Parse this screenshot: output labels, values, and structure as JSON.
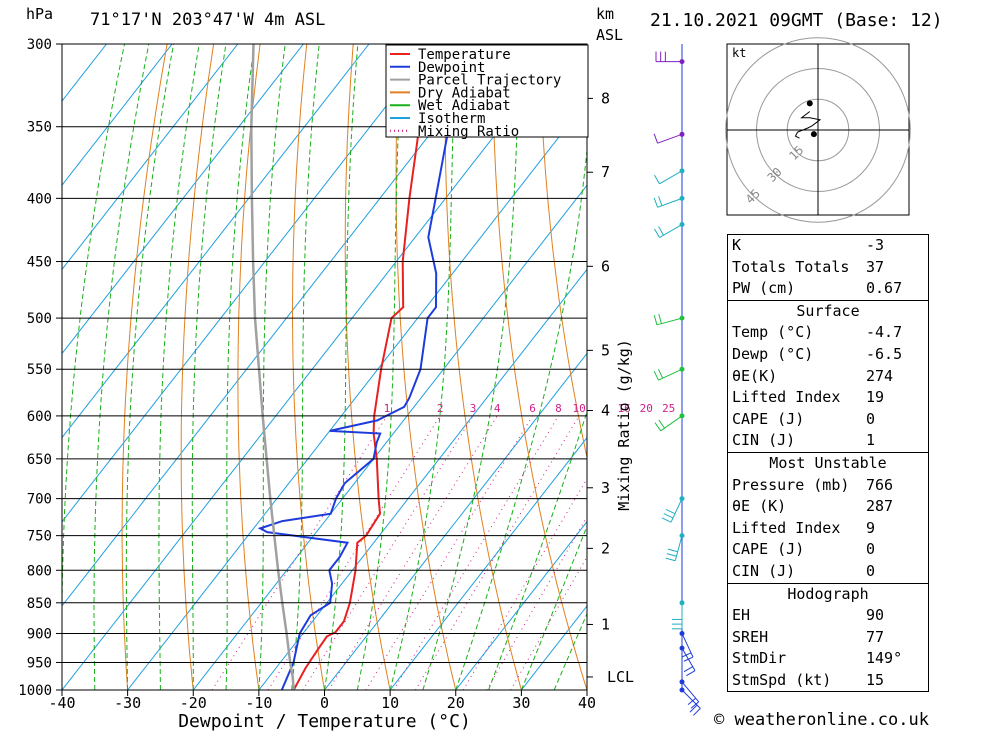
{
  "header": {
    "hpa_label": "hPa",
    "location": "71°17'N  203°47'W  4m  ASL",
    "km_label": "km",
    "asl_label": "ASL",
    "datetime": "21.10.2021  09GMT  (Base: 12)"
  },
  "footer": {
    "credit": "© weatheronline.co.uk"
  },
  "colors": {
    "temperature": "#e82020",
    "dewpoint": "#1e3cdc",
    "parcel": "#a0a0a0",
    "dry_adiabat": "#e08020",
    "wet_adiabat": "#18b018",
    "isotherm": "#20a0e0",
    "mixing_ratio": "#d0208a"
  },
  "chart_data": {
    "type": "line",
    "title": "",
    "xlabel": "Dewpoint / Temperature (°C)",
    "ylabel": "hPa",
    "right_axis_label": "Mixing Ratio (g/kg)",
    "xlim": [
      -40,
      40
    ],
    "ylim": [
      1000,
      300
    ],
    "x_ticks": [
      "-40",
      "-30",
      "-20",
      "-10",
      "0",
      "10",
      "20",
      "30",
      "40"
    ],
    "pressure_ticks": [
      "300",
      "350",
      "400",
      "450",
      "500",
      "550",
      "600",
      "650",
      "700",
      "750",
      "800",
      "850",
      "900",
      "950",
      "1000"
    ],
    "km_ticks": [
      {
        "label": "8",
        "p": 332
      },
      {
        "label": "7",
        "p": 381
      },
      {
        "label": "6",
        "p": 454
      },
      {
        "label": "5",
        "p": 531
      },
      {
        "label": "4",
        "p": 594
      },
      {
        "label": "3",
        "p": 686
      },
      {
        "label": "2",
        "p": 768
      },
      {
        "label": "1",
        "p": 885
      }
    ],
    "lcl": {
      "label": "LCL",
      "p": 976
    },
    "mixing_ratio_labels": [
      "1",
      "2",
      "3",
      "4",
      "6",
      "8",
      "10",
      "16",
      "20",
      "25"
    ],
    "legend": [
      "Temperature",
      "Dewpoint",
      "Parcel Trajectory",
      "Dry Adiabat",
      "Wet Adiabat",
      "Isotherm",
      "Mixing Ratio"
    ],
    "legend_position": "top-right",
    "series": [
      {
        "name": "Temperature",
        "points": [
          [
            1000,
            -4.7
          ],
          [
            960,
            -5.5
          ],
          [
            930,
            -5.8
          ],
          [
            905,
            -6.0
          ],
          [
            898,
            -5.2
          ],
          [
            880,
            -5.2
          ],
          [
            850,
            -6.5
          ],
          [
            800,
            -9.5
          ],
          [
            760,
            -12.5
          ],
          [
            750,
            -12
          ],
          [
            720,
            -12.5
          ],
          [
            700,
            -14.5
          ],
          [
            650,
            -19.5
          ],
          [
            620,
            -23
          ],
          [
            600,
            -25
          ],
          [
            550,
            -29.5
          ],
          [
            500,
            -34
          ],
          [
            490,
            -33.5
          ],
          [
            450,
            -39
          ],
          [
            400,
            -45.5
          ],
          [
            350,
            -52.5
          ],
          [
            300,
            -59.5
          ]
        ]
      },
      {
        "name": "Dewpoint",
        "points": [
          [
            1000,
            -6.5
          ],
          [
            950,
            -8
          ],
          [
            900,
            -10.5
          ],
          [
            870,
            -11
          ],
          [
            850,
            -9.5
          ],
          [
            820,
            -11.5
          ],
          [
            800,
            -13.5
          ],
          [
            780,
            -13.5
          ],
          [
            760,
            -14
          ],
          [
            745,
            -27.5
          ],
          [
            740,
            -29
          ],
          [
            730,
            -26.5
          ],
          [
            720,
            -20
          ],
          [
            700,
            -21
          ],
          [
            680,
            -21.5
          ],
          [
            650,
            -20
          ],
          [
            630,
            -21.5
          ],
          [
            620,
            -22
          ],
          [
            617,
            -30
          ],
          [
            613,
            -28
          ],
          [
            605,
            -24
          ],
          [
            590,
            -21.5
          ],
          [
            580,
            -21.8
          ],
          [
            550,
            -23.5
          ],
          [
            500,
            -28.5
          ],
          [
            490,
            -28.5
          ],
          [
            460,
            -32.5
          ],
          [
            430,
            -38
          ],
          [
            400,
            -41.5
          ],
          [
            350,
            -48
          ],
          [
            330,
            -53
          ],
          [
            315,
            -61
          ],
          [
            300,
            -61.5
          ]
        ]
      },
      {
        "name": "Parcel Trajectory",
        "points": [
          [
            1000,
            -4.7
          ],
          [
            976,
            -6.4
          ],
          [
            950,
            -8.5
          ],
          [
            900,
            -12.5
          ],
          [
            850,
            -16.8
          ],
          [
            800,
            -21.3
          ],
          [
            750,
            -26
          ],
          [
            700,
            -31
          ],
          [
            650,
            -36.3
          ],
          [
            600,
            -42
          ],
          [
            550,
            -48.1
          ],
          [
            500,
            -54.8
          ],
          [
            450,
            -61.8
          ],
          [
            400,
            -69.5
          ],
          [
            350,
            -78.1
          ],
          [
            300,
            -87.6
          ]
        ]
      }
    ],
    "hodograph": {
      "unit": "kt",
      "ring_labels": [
        "15",
        "30",
        "45"
      ],
      "trace_kt": [
        [
          -9,
          -4
        ],
        [
          -11,
          -3
        ],
        [
          -10,
          -1
        ],
        [
          -5,
          1
        ],
        [
          -3,
          2
        ],
        [
          1,
          5
        ],
        [
          -4,
          6
        ],
        [
          -8,
          6
        ],
        [
          -4,
          9
        ]
      ]
    },
    "wind_profile": [
      {
        "p": 1000,
        "dir": 135,
        "spd": 15
      },
      {
        "p": 985,
        "dir": 140,
        "spd": 15
      },
      {
        "p": 925,
        "dir": 150,
        "spd": 20
      },
      {
        "p": 900,
        "dir": 155,
        "spd": 20
      },
      {
        "p": 850,
        "dir": 180,
        "spd": 25
      },
      {
        "p": 750,
        "dir": 195,
        "spd": 25
      },
      {
        "p": 700,
        "dir": 205,
        "spd": 25
      },
      {
        "p": 600,
        "dir": 235,
        "spd": 20
      },
      {
        "p": 550,
        "dir": 245,
        "spd": 20
      },
      {
        "p": 500,
        "dir": 255,
        "spd": 20
      },
      {
        "p": 420,
        "dir": 240,
        "spd": 15
      },
      {
        "p": 400,
        "dir": 250,
        "spd": 15
      },
      {
        "p": 380,
        "dir": 240,
        "spd": 10
      },
      {
        "p": 355,
        "dir": 250,
        "spd": 10
      },
      {
        "p": 310,
        "dir": 270,
        "spd": 30
      }
    ]
  },
  "indices": {
    "basic": [
      {
        "label": "K",
        "value": "-3"
      },
      {
        "label": "Totals Totals",
        "value": "37"
      },
      {
        "label": "PW (cm)",
        "value": "0.67"
      }
    ],
    "surface": {
      "title": "Surface",
      "rows": [
        {
          "label": "Temp (°C)",
          "value": "-4.7"
        },
        {
          "label": "Dewp (°C)",
          "value": "-6.5"
        },
        {
          "label": "θE(K)",
          "value": "274"
        },
        {
          "label": "Lifted Index",
          "value": "19"
        },
        {
          "label": "CAPE (J)",
          "value": "0"
        },
        {
          "label": "CIN (J)",
          "value": "1"
        }
      ]
    },
    "most_unstable": {
      "title": "Most Unstable",
      "rows": [
        {
          "label": "Pressure (mb)",
          "value": "766"
        },
        {
          "label": "θE (K)",
          "value": "287"
        },
        {
          "label": "Lifted Index",
          "value": "9"
        },
        {
          "label": "CAPE (J)",
          "value": "0"
        },
        {
          "label": "CIN (J)",
          "value": "0"
        }
      ]
    },
    "hodograph": {
      "title": "Hodograph",
      "rows": [
        {
          "label": "EH",
          "value": "90"
        },
        {
          "label": "SREH",
          "value": "77"
        },
        {
          "label": "StmDir",
          "value": "149°"
        },
        {
          "label": "StmSpd (kt)",
          "value": "15"
        }
      ]
    }
  }
}
